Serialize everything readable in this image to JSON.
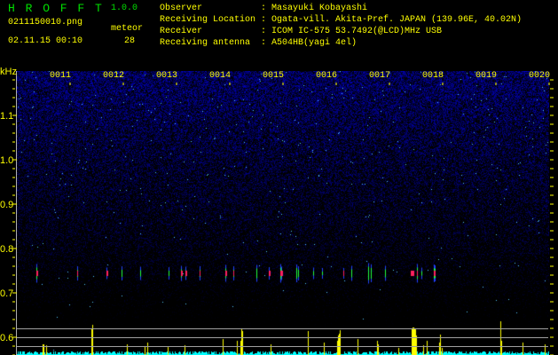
{
  "app": {
    "name": "H R O F F T",
    "version": "1.0.0"
  },
  "file": {
    "name": "0211150010.png",
    "datetime": "02.11.15 00:10"
  },
  "meteor": {
    "label": "meteor",
    "count": "28"
  },
  "info": [
    {
      "label": "Observer",
      "value": ": Masayuki Kobayashi"
    },
    {
      "label": "Receiving Location",
      "value": ": Ogata-vill. Akita-Pref. JAPAN (139.96E, 40.02N)"
    },
    {
      "label": "Receiver",
      "value": ": ICOM IC-575 53.7492(@LCD)MHz USB"
    },
    {
      "label": "Receiving antenna",
      "value": ": A504HB(yagi 4el)"
    }
  ],
  "spectrogram": {
    "y_unit": "kHz",
    "y_ticks": [
      "1.1",
      "1.0",
      "0.9",
      "0.8",
      "0.7",
      "0.6"
    ],
    "time_labels": [
      "0011",
      "0012",
      "0013",
      "0014",
      "0015",
      "0016",
      "0017",
      "0018",
      "0019",
      "0020"
    ],
    "colors": {
      "noise": "#1a1aa0",
      "echo_hot": "#ff2060",
      "echo_mid": "#20ff40",
      "bars": "#ffff00",
      "baseline": "#00ffff",
      "labels": "#ffff00"
    }
  }
}
